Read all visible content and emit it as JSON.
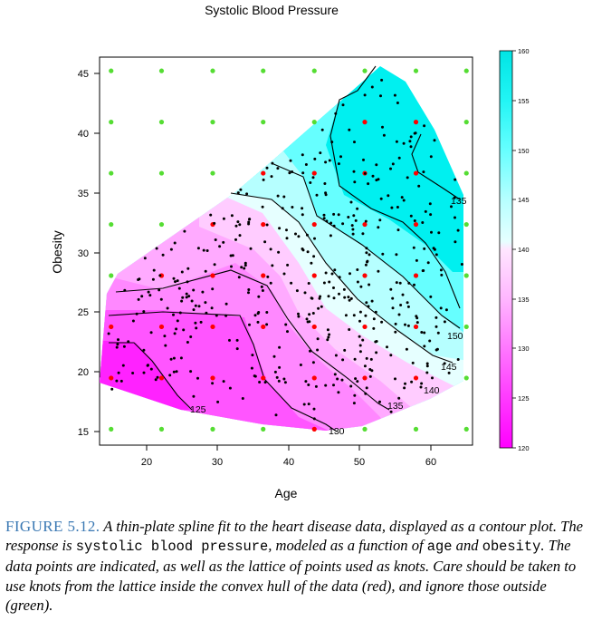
{
  "figure": {
    "title": "Systolic Blood Pressure",
    "x_label": "Age",
    "y_label": "Obesity",
    "x_ticks": [
      "20",
      "30",
      "40",
      "50",
      "60"
    ],
    "y_ticks": [
      "15",
      "20",
      "25",
      "30",
      "35",
      "40",
      "45"
    ],
    "colorbar_ticks": [
      "120",
      "125",
      "130",
      "135",
      "140",
      "145",
      "150",
      "155",
      "160"
    ],
    "contour_labels": [
      "125",
      "130",
      "135",
      "140",
      "145",
      "150",
      "135"
    ],
    "colors": {
      "low": "#ff00ff",
      "mid": "#ffffff",
      "high": "#00e5e5",
      "knot_inside": "#ff0000",
      "knot_outside": "#55dd33",
      "points": "#000000"
    }
  },
  "chart_data": {
    "type": "heatmap",
    "title": "Systolic Blood Pressure",
    "xlabel": "Age",
    "ylabel": "Obesity",
    "xlim": [
      14,
      65
    ],
    "ylim": [
      14,
      46.5
    ],
    "colorbar_range": [
      120,
      160
    ],
    "contour_levels": [
      125,
      130,
      135,
      140,
      145,
      150
    ],
    "knot_grid": {
      "x": [
        15,
        22.1,
        29.3,
        36.4,
        43.6,
        50.7,
        57.9,
        65
      ],
      "y": [
        15.2,
        19.5,
        23.8,
        28.1,
        32.4,
        36.7,
        41,
        45.3
      ]
    }
  },
  "caption": {
    "label": "FIGURE 5.12.",
    "part1": " A thin-plate spline fit to the heart disease data, displayed as a contour plot. The response is ",
    "code1": "systolic blood pressure",
    "part2": ", modeled as a function of ",
    "code2": "age",
    "part3": " and ",
    "code3": "obesity",
    "part4": ". The data points are indicated, as well as the lattice of points used as knots. Care should be taken to use knots from the lattice inside the convex hull of the data (red), and ignore those outside (green)."
  }
}
